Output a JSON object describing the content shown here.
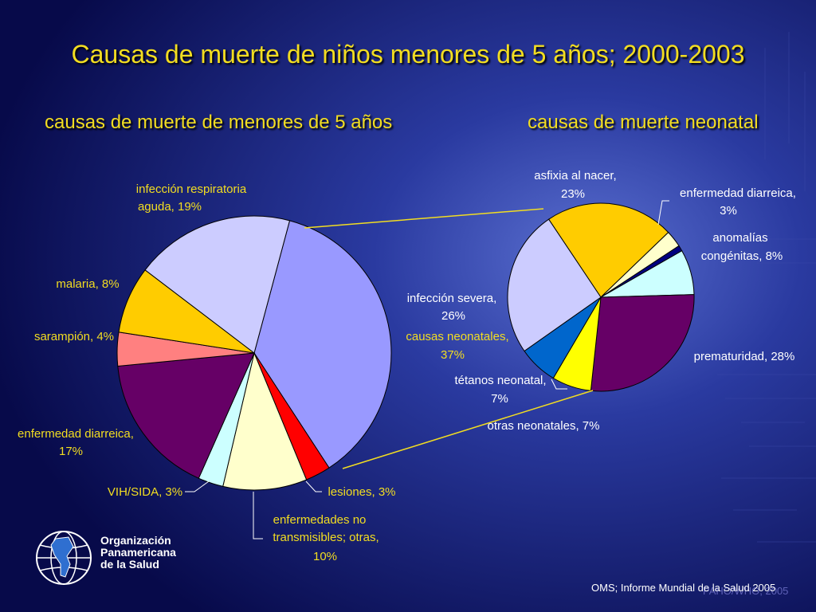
{
  "title": "Causas de muerte de niños menores de 5 años; 2000-2003",
  "chart_data": [
    {
      "type": "pie",
      "title": "causas de muerte de menores de 5 años",
      "slices": [
        {
          "label": "causas neonatales, 37%",
          "value": 37,
          "color": "#9999ff"
        },
        {
          "label": "lesiones, 3%",
          "value": 3,
          "color": "#ff0000"
        },
        {
          "label": "enfermedades no transmisibles; otras, 10%",
          "value": 10,
          "color": "#ffffcc"
        },
        {
          "label": "VIH/SIDA, 3%",
          "value": 3,
          "color": "#ccffff"
        },
        {
          "label": "enfermedad diarreica, 17%",
          "value": 17,
          "color": "#660066"
        },
        {
          "label": "sarampión, 4%",
          "value": 4,
          "color": "#ff8080"
        },
        {
          "label": "malaria, 8%",
          "value": 8,
          "color": "#ffcc00"
        },
        {
          "label": "infección respiratoria aguda, 19%",
          "value": 19,
          "color": "#ccccff"
        }
      ]
    },
    {
      "type": "pie",
      "title": "causas de muerte neonatal",
      "slices": [
        {
          "label": "asfixia al nacer, 23%",
          "value": 23,
          "color": "#ffcc00"
        },
        {
          "label": "enfermedad diarreica, 3%",
          "value": 3,
          "color": "#ffffcc"
        },
        {
          "label": "",
          "value": 1,
          "color": "#000080"
        },
        {
          "label": "anomalías congénitas, 8%",
          "value": 8,
          "color": "#ccffff"
        },
        {
          "label": "prematuridad, 28%",
          "value": 28,
          "color": "#660066"
        },
        {
          "label": "otras neonatales, 7%",
          "value": 7,
          "color": "#ffff00"
        },
        {
          "label": "tétanos neonatal, 7%",
          "value": 7,
          "color": "#0066cc"
        },
        {
          "label": "infección severa, 26%",
          "value": 26,
          "color": "#ccccff"
        }
      ]
    }
  ],
  "labels": {
    "left": {
      "resp1": "infección respiratoria",
      "resp2": "aguda, 19%",
      "malaria": "malaria, 8%",
      "saramp": "sarampión, 4%",
      "diar1": "enfermedad diarreica,",
      "diar2": "17%",
      "vih": "VIH/SIDA, 3%",
      "lesiones": "lesiones, 3%",
      "enf1": "enfermedades no",
      "enf2": "transmisibles; otras,",
      "enf3": "10%",
      "neo1": "causas neonatales,",
      "neo2": "37%"
    },
    "right": {
      "asf1": "asfixia al nacer,",
      "asf2": "23%",
      "diar1": "enfermedad diarreica,",
      "diar2": "3%",
      "anom1": "anomalías",
      "anom2": "congénitas, 8%",
      "prem": "prematuridad, 28%",
      "otras": "otras neonatales, 7%",
      "tet1": "tétanos neonatal,",
      "tet2": "7%",
      "inf1": "infección severa,",
      "inf2": "26%"
    }
  },
  "logo": {
    "line1": "Organización",
    "line2": "Panamericana",
    "line3": "de la Salud"
  },
  "source": "OMS; Informe Mundial de la Salud 2005",
  "watermark": "PAHO/WHO, 2005"
}
